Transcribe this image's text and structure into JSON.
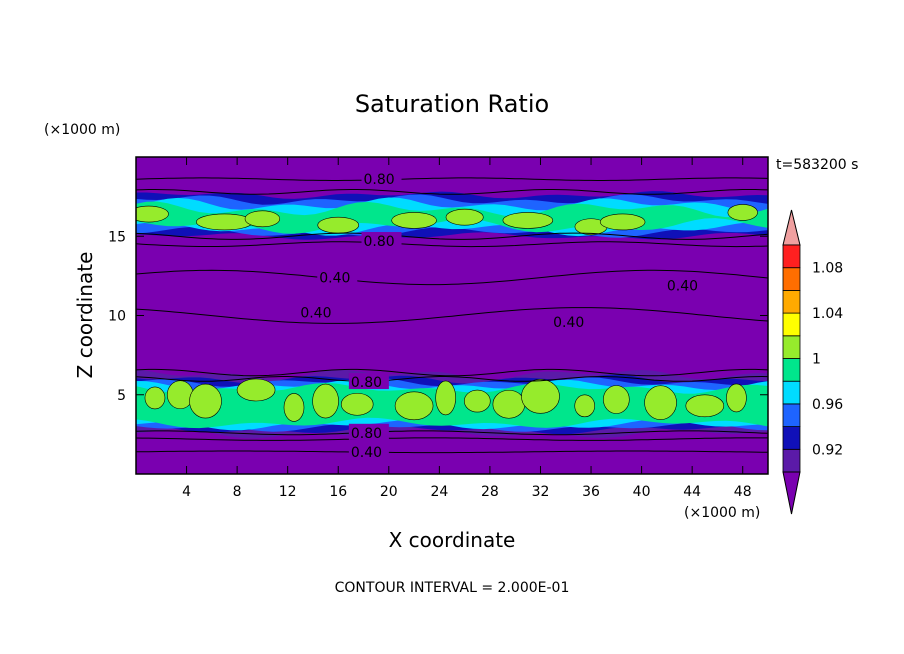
{
  "chart_data": {
    "type": "heatmap",
    "title": "Saturation Ratio",
    "xlabel": "X coordinate",
    "ylabel": "Z coordinate",
    "x_unit": "(×1000 m)",
    "y_unit": "(×1000 m)",
    "time_label": "t=583200 s",
    "footer": "CONTOUR INTERVAL = 2.000E-01",
    "xlim": [
      0,
      50
    ],
    "ylim": [
      0,
      20
    ],
    "x_ticks": [
      "4",
      "8",
      "12",
      "16",
      "20",
      "24",
      "28",
      "32",
      "36",
      "40",
      "44",
      "48"
    ],
    "x_tick_values": [
      4,
      8,
      12,
      16,
      20,
      24,
      28,
      32,
      36,
      40,
      44,
      48
    ],
    "y_ticks": [
      "5",
      "10",
      "15"
    ],
    "y_tick_values": [
      5,
      10,
      15
    ],
    "colorbar": {
      "labels": [
        "1.08",
        "1.04",
        "1",
        "0.96",
        "0.92"
      ],
      "label_values": [
        1.08,
        1.04,
        1.0,
        0.96,
        0.92
      ],
      "levels": [
        0.9,
        0.92,
        0.94,
        0.96,
        0.98,
        1.0,
        1.02,
        1.04,
        1.06,
        1.08,
        1.1
      ],
      "colors": [
        "#5b1aa8",
        "#1010b8",
        "#1e64ff",
        "#00dcff",
        "#00e68c",
        "#96eb2c",
        "#ffff00",
        "#ffaa00",
        "#ff6e00",
        "#ff2020"
      ],
      "under_color": "#7a00b0",
      "over_color": "#f0a0a0"
    },
    "background_color": "#7a00b0",
    "contour_labels": [
      {
        "text": "0.80",
        "x": 18.0,
        "z": 18.6
      },
      {
        "text": "0.80",
        "x": 18.0,
        "z": 14.7
      },
      {
        "text": "0.40",
        "x": 14.5,
        "z": 12.4
      },
      {
        "text": "0.40",
        "x": 42.0,
        "z": 11.9
      },
      {
        "text": "0.40",
        "x": 13.0,
        "z": 10.2
      },
      {
        "text": "0.40",
        "x": 33.0,
        "z": 9.6
      },
      {
        "text": "0.80",
        "x": 17.0,
        "z": 5.8
      },
      {
        "text": "0.80",
        "x": 17.0,
        "z": 2.6
      },
      {
        "text": "0.40",
        "x": 17.0,
        "z": 1.4
      }
    ]
  }
}
